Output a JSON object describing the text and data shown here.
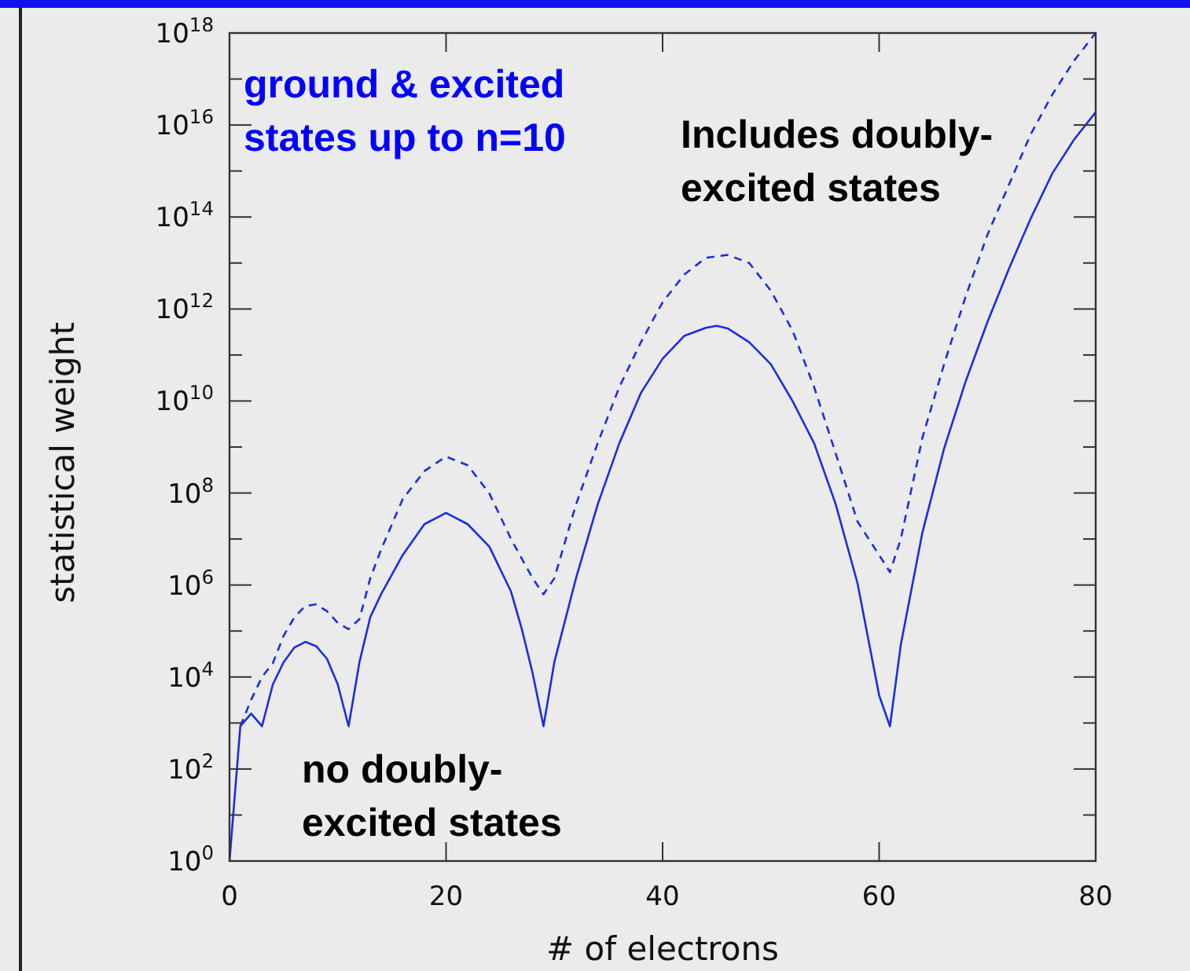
{
  "chart_data": {
    "type": "line",
    "xlabel": "# of electrons",
    "ylabel": "statistical weight",
    "log": "y",
    "grid": false,
    "marker": "none",
    "xlim": [
      0,
      80
    ],
    "xticks": [
      0,
      20,
      40,
      60,
      80
    ],
    "ylim": [
      1,
      1e+18
    ],
    "yticks": [
      {
        "value": 1,
        "label": "10$^{0}$"
      },
      {
        "value": 10.0,
        "label": null
      },
      {
        "value": 100.0,
        "label": "10$^{2}$"
      },
      {
        "value": 1000.0,
        "label": null
      },
      {
        "value": 10000.0,
        "label": "10$^{4}$"
      },
      {
        "value": 100000.0,
        "label": null
      },
      {
        "value": 1000000.0,
        "label": "10$^{6}$"
      },
      {
        "value": 10000000.0,
        "label": null
      },
      {
        "value": 100000000.0,
        "label": "10$^{8}$"
      },
      {
        "value": 1000000000.0,
        "label": null
      },
      {
        "value": 10000000000.0,
        "label": "10$^{10}$"
      },
      {
        "value": 100000000000.0,
        "label": null
      },
      {
        "value": 1000000000000.0,
        "label": "10$^{12}$"
      },
      {
        "value": 10000000000000.0,
        "label": null
      },
      {
        "value": 100000000000000.0,
        "label": "10$^{14}$"
      },
      {
        "value": 1000000000000000.0,
        "label": null
      },
      {
        "value": 1e+16,
        "label": "10$^{16}$"
      },
      {
        "value": 1e+17,
        "label": null
      },
      {
        "value": 1e+18,
        "label": "10$^{18}$"
      }
    ],
    "annotations": [
      "ground & excited\nstates up to n=10",
      "Includes doubly-\nexcited states",
      "no doubly-\nexcited states"
    ],
    "series": [
      {
        "color": "#1a2ee0",
        "line_style": "solid",
        "x": [
          0,
          1,
          2,
          3,
          4,
          5,
          6,
          7,
          8,
          9,
          10,
          11,
          12,
          13,
          14,
          16,
          18,
          20,
          22,
          24,
          26,
          27,
          28,
          29,
          30,
          32,
          34,
          36,
          38,
          40,
          42,
          44,
          45,
          46,
          48,
          50,
          52,
          54,
          56,
          58,
          59,
          60,
          61,
          62,
          64,
          66,
          68,
          70,
          72,
          74,
          76,
          78,
          80
        ],
        "values": [
          1,
          850,
          1600,
          850,
          6900,
          21000,
          44000,
          58000,
          47000,
          25000,
          6900,
          850,
          21000,
          200000.0,
          630000.0,
          4500000.0,
          21000000.0,
          37000000.0,
          21000000.0,
          6800000.0,
          720000.0,
          110000.0,
          12000,
          850,
          21000,
          1400000.0,
          56000000.0,
          1200000000.0,
          15000000000.0,
          83000000000.0,
          260000000000.0,
          390000000000.0,
          430000000000.0,
          380000000000.0,
          190000000000.0,
          63000000000.0,
          10000000000.0,
          1200000000.0,
          56000000.0,
          1100000.0,
          66000,
          4000,
          850,
          50000,
          14000000.0,
          930000000.0,
          27000000000.0,
          520000000000.0,
          7600000000000.0,
          93000000000000.0,
          890000000000000.0,
          4800000000000000.0,
          1.9e+16
        ]
      },
      {
        "color": "#1a2ee0",
        "line_style": "dashed",
        "x": [
          1,
          2,
          3,
          4,
          5,
          6,
          7,
          8,
          9,
          10,
          11,
          12,
          13,
          14,
          16,
          18,
          20,
          22,
          24,
          26,
          28,
          29,
          30,
          32,
          34,
          36,
          38,
          40,
          42,
          44,
          46,
          48,
          50,
          52,
          54,
          56,
          58,
          60,
          61,
          62,
          64,
          66,
          68,
          70,
          72,
          74,
          76,
          78,
          80
        ],
        "values": [
          850,
          3200,
          10000,
          20000,
          79000,
          200000.0,
          350000.0,
          380000.0,
          270000.0,
          150000.0,
          110000.0,
          180000.0,
          1400000.0,
          5900000.0,
          74000000.0,
          300000000.0,
          620000000.0,
          400000000.0,
          98000000.0,
          10000000.0,
          1400000.0,
          630000.0,
          1400000.0,
          56000000.0,
          1200000000.0,
          20000000000.0,
          190000000000.0,
          1400000000000.0,
          5600000000000.0,
          13000000000000.0,
          15000000000000.0,
          10000000000000.0,
          2500000000000.0,
          340000000000.0,
          20000000000.0,
          710000000.0,
          24000000.0,
          4500000.0,
          1900000.0,
          10000000.0,
          1600000000.0,
          63000000000.0,
          1900000000000.0,
          41000000000000.0,
          510000000000000.0,
          6300000000000000.0,
          4.6e+16,
          2.5e+17,
          1e+18
        ]
      }
    ]
  }
}
